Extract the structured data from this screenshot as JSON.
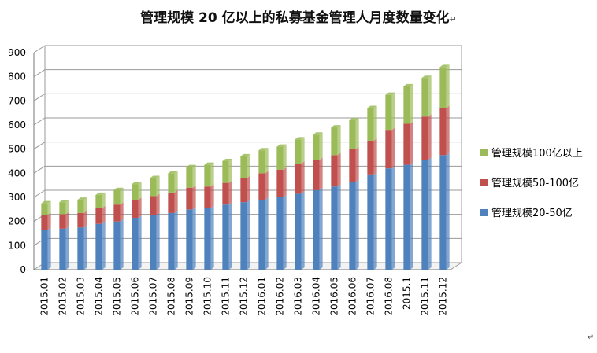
{
  "chart_data": {
    "type": "bar",
    "stacked": true,
    "title": "管理规模 20 亿以上的私募基金管理人月度数量变化",
    "title_mark": "↵",
    "corner_mark": "↵",
    "xlabel": "",
    "ylabel": "",
    "ylim": [
      0,
      900
    ],
    "yticks": [
      0,
      100,
      200,
      300,
      400,
      500,
      600,
      700,
      800,
      900
    ],
    "grid": true,
    "legend_position": "right",
    "categories": [
      "2015.01",
      "2015.02",
      "2015.03",
      "2015.04",
      "2015.05",
      "2015.06",
      "2015.07",
      "2015.08",
      "2015.09",
      "2015.10",
      "2015.11",
      "2015.12",
      "2016.01",
      "2016.02",
      "2016.03",
      "2016.04",
      "2016.05",
      "2016.06",
      "2016.07",
      "2016.08",
      "2015.1",
      "2015.11",
      "2015.12"
    ],
    "series": [
      {
        "name": "管理规模20-50亿",
        "color": "#4F81BD",
        "values": [
          165,
          170,
          175,
          190,
          200,
          215,
          225,
          235,
          250,
          255,
          270,
          280,
          290,
          300,
          315,
          330,
          345,
          365,
          395,
          420,
          435,
          455,
          475
        ]
      },
      {
        "name": "管理规模50-100亿",
        "color": "#C0504D",
        "values": [
          60,
          60,
          60,
          65,
          70,
          75,
          80,
          85,
          90,
          90,
          90,
          100,
          110,
          115,
          125,
          125,
          130,
          135,
          140,
          160,
          170,
          180,
          195
        ]
      },
      {
        "name": "管理规模100亿以上",
        "color": "#9BBB59",
        "values": [
          50,
          50,
          55,
          55,
          60,
          65,
          75,
          80,
          85,
          90,
          90,
          90,
          95,
          95,
          100,
          105,
          115,
          120,
          135,
          145,
          155,
          160,
          170
        ]
      }
    ]
  }
}
